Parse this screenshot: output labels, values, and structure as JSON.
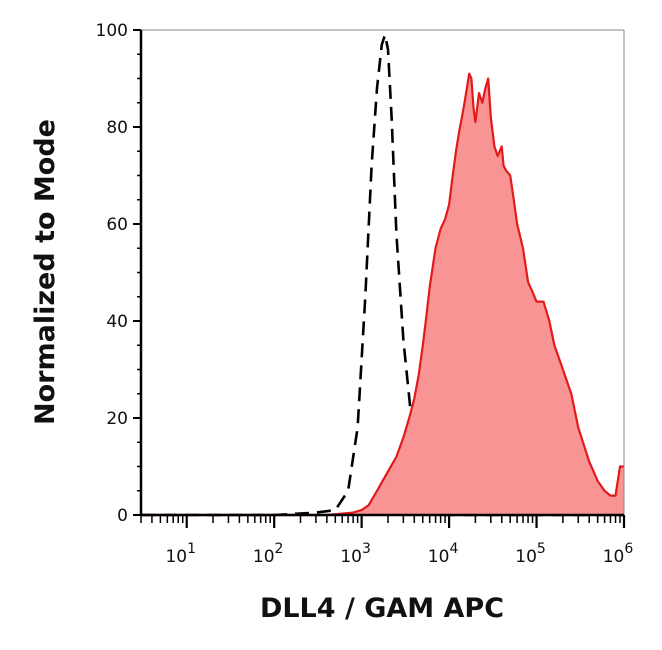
{
  "chart_data": {
    "type": "area",
    "xlabel": "DLL4 / GAM APC",
    "ylabel": "Normalized to Mode",
    "x_scale": "log",
    "xlim": [
      3,
      1000000
    ],
    "ylim": [
      0,
      100
    ],
    "y_ticks": [
      0,
      20,
      40,
      60,
      80,
      100
    ],
    "x_ticks": [
      {
        "value": 10,
        "base": "10",
        "exp": "1"
      },
      {
        "value": 100,
        "base": "10",
        "exp": "2"
      },
      {
        "value": 1000,
        "base": "10",
        "exp": "3"
      },
      {
        "value": 10000,
        "base": "10",
        "exp": "4"
      },
      {
        "value": 100000,
        "base": "10",
        "exp": "5"
      },
      {
        "value": 1000000,
        "base": "10",
        "exp": "6"
      }
    ],
    "grid": false,
    "series": [
      {
        "style": "dashed-line",
        "color": "#000000",
        "points": [
          [
            3,
            0
          ],
          [
            100,
            0
          ],
          [
            300,
            0.5
          ],
          [
            500,
            1
          ],
          [
            700,
            5
          ],
          [
            900,
            18
          ],
          [
            1100,
            45
          ],
          [
            1300,
            72
          ],
          [
            1500,
            88
          ],
          [
            1700,
            97
          ],
          [
            1850,
            99
          ],
          [
            2000,
            96
          ],
          [
            2200,
            82
          ],
          [
            2500,
            58
          ],
          [
            3000,
            36
          ],
          [
            3600,
            22
          ],
          [
            4300,
            10
          ],
          [
            5200,
            3
          ],
          [
            6500,
            1
          ],
          [
            9000,
            0
          ],
          [
            1000000,
            0
          ]
        ]
      },
      {
        "style": "filled-area",
        "color": "#e31a1c",
        "fill": "#f99494",
        "points": [
          [
            3,
            0
          ],
          [
            400,
            0
          ],
          [
            800,
            0.5
          ],
          [
            1000,
            1
          ],
          [
            1200,
            2
          ],
          [
            1500,
            5
          ],
          [
            2000,
            9
          ],
          [
            2500,
            12
          ],
          [
            3000,
            16
          ],
          [
            3500,
            20
          ],
          [
            4000,
            24
          ],
          [
            4500,
            29
          ],
          [
            5000,
            35
          ],
          [
            5500,
            41
          ],
          [
            6000,
            47
          ],
          [
            7000,
            55
          ],
          [
            8000,
            59
          ],
          [
            9000,
            61
          ],
          [
            10000,
            64
          ],
          [
            11000,
            70
          ],
          [
            12000,
            75
          ],
          [
            13000,
            79
          ],
          [
            14000,
            82
          ],
          [
            15000,
            85
          ],
          [
            16000,
            88
          ],
          [
            17000,
            91
          ],
          [
            18000,
            90
          ],
          [
            19000,
            84
          ],
          [
            20000,
            81
          ],
          [
            22000,
            87
          ],
          [
            24000,
            85
          ],
          [
            26000,
            88
          ],
          [
            28000,
            90
          ],
          [
            30000,
            82
          ],
          [
            33000,
            76
          ],
          [
            36000,
            74
          ],
          [
            40000,
            76
          ],
          [
            42000,
            72
          ],
          [
            45000,
            71
          ],
          [
            50000,
            70
          ],
          [
            55000,
            65
          ],
          [
            60000,
            60
          ],
          [
            70000,
            55
          ],
          [
            80000,
            48
          ],
          [
            90000,
            46
          ],
          [
            100000,
            44
          ],
          [
            120000,
            44
          ],
          [
            140000,
            40
          ],
          [
            160000,
            35
          ],
          [
            200000,
            30
          ],
          [
            250000,
            25
          ],
          [
            300000,
            18
          ],
          [
            400000,
            11
          ],
          [
            500000,
            7
          ],
          [
            600000,
            5
          ],
          [
            700000,
            4
          ],
          [
            800000,
            4
          ],
          [
            900000,
            10
          ],
          [
            1000000,
            10
          ]
        ]
      }
    ]
  }
}
